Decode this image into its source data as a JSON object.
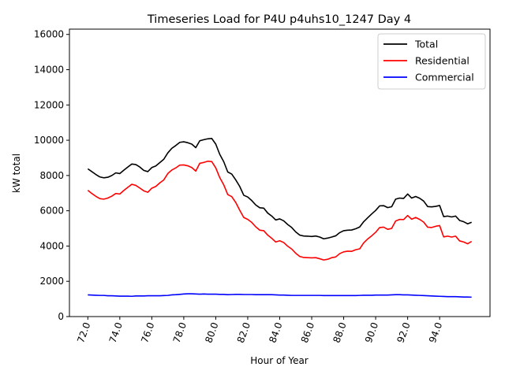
{
  "chart_data": {
    "type": "line",
    "title": "Timeseries Load for P4U p4uhs10_1247  Day 4",
    "xlabel": "Hour of Year",
    "ylabel": "kW total",
    "xlim": [
      70.85,
      97.15
    ],
    "ylim": [
      0,
      16300
    ],
    "xticks": [
      72,
      74,
      76,
      78,
      80,
      82,
      84,
      86,
      88,
      90,
      92,
      94
    ],
    "xtick_labels": [
      "72.0",
      "74.0",
      "76.0",
      "78.0",
      "80.0",
      "82.0",
      "84.0",
      "86.0",
      "88.0",
      "90.0",
      "92.0",
      "94.0"
    ],
    "yticks": [
      0,
      2000,
      4000,
      6000,
      8000,
      10000,
      12000,
      14000,
      16000
    ],
    "ytick_labels": [
      "0",
      "2000",
      "4000",
      "6000",
      "8000",
      "10000",
      "12000",
      "14000",
      "16000"
    ],
    "legend_position": "top-right",
    "x_start": 72,
    "x_step": 0.25,
    "series": [
      {
        "name": "Total",
        "color": "#000000",
        "values": [
          8380,
          8220,
          8060,
          7920,
          7870,
          7900,
          8000,
          8150,
          8110,
          8300,
          8480,
          8650,
          8620,
          8480,
          8290,
          8220,
          8450,
          8540,
          8730,
          8920,
          9280,
          9540,
          9700,
          9880,
          9910,
          9860,
          9780,
          9580,
          9970,
          10030,
          10080,
          10100,
          9780,
          9200,
          8780,
          8200,
          8080,
          7750,
          7380,
          6880,
          6780,
          6580,
          6330,
          6170,
          6150,
          5870,
          5700,
          5480,
          5540,
          5430,
          5220,
          5050,
          4800,
          4620,
          4570,
          4560,
          4540,
          4570,
          4510,
          4410,
          4450,
          4510,
          4580,
          4760,
          4870,
          4900,
          4910,
          4980,
          5080,
          5380,
          5600,
          5820,
          6020,
          6280,
          6290,
          6180,
          6230,
          6660,
          6720,
          6700,
          6950,
          6720,
          6810,
          6710,
          6550,
          6240,
          6220,
          6250,
          6300,
          5670,
          5700,
          5650,
          5700,
          5450,
          5380,
          5260,
          5350
        ]
      },
      {
        "name": "Residential",
        "color": "#ff0000",
        "values": [
          7160,
          6980,
          6820,
          6690,
          6660,
          6720,
          6830,
          6980,
          6950,
          7150,
          7330,
          7500,
          7440,
          7290,
          7130,
          7050,
          7280,
          7380,
          7580,
          7750,
          8110,
          8310,
          8430,
          8590,
          8600,
          8550,
          8450,
          8250,
          8690,
          8740,
          8810,
          8790,
          8430,
          7880,
          7470,
          6920,
          6800,
          6470,
          6030,
          5620,
          5510,
          5340,
          5090,
          4900,
          4870,
          4620,
          4440,
          4230,
          4300,
          4200,
          3990,
          3830,
          3590,
          3410,
          3350,
          3340,
          3330,
          3340,
          3280,
          3210,
          3250,
          3340,
          3380,
          3570,
          3670,
          3710,
          3700,
          3790,
          3840,
          4180,
          4400,
          4580,
          4780,
          5050,
          5070,
          4950,
          5000,
          5420,
          5510,
          5500,
          5730,
          5520,
          5620,
          5510,
          5360,
          5070,
          5050,
          5120,
          5160,
          4520,
          4560,
          4510,
          4560,
          4290,
          4230,
          4130,
          4260
        ]
      },
      {
        "name": "Commercial",
        "color": "#0000ff",
        "values": [
          1230,
          1220,
          1210,
          1200,
          1200,
          1180,
          1180,
          1170,
          1160,
          1160,
          1160,
          1150,
          1170,
          1170,
          1170,
          1180,
          1180,
          1180,
          1180,
          1190,
          1200,
          1230,
          1240,
          1260,
          1280,
          1290,
          1290,
          1280,
          1270,
          1280,
          1270,
          1270,
          1270,
          1260,
          1260,
          1240,
          1250,
          1260,
          1260,
          1250,
          1250,
          1250,
          1240,
          1240,
          1240,
          1240,
          1240,
          1230,
          1220,
          1220,
          1210,
          1200,
          1200,
          1200,
          1200,
          1200,
          1200,
          1200,
          1200,
          1190,
          1190,
          1190,
          1190,
          1190,
          1190,
          1190,
          1190,
          1190,
          1200,
          1210,
          1210,
          1210,
          1220,
          1220,
          1220,
          1220,
          1230,
          1240,
          1240,
          1230,
          1230,
          1220,
          1210,
          1200,
          1190,
          1180,
          1170,
          1160,
          1150,
          1140,
          1130,
          1130,
          1130,
          1120,
          1110,
          1110,
          1100
        ]
      }
    ]
  }
}
